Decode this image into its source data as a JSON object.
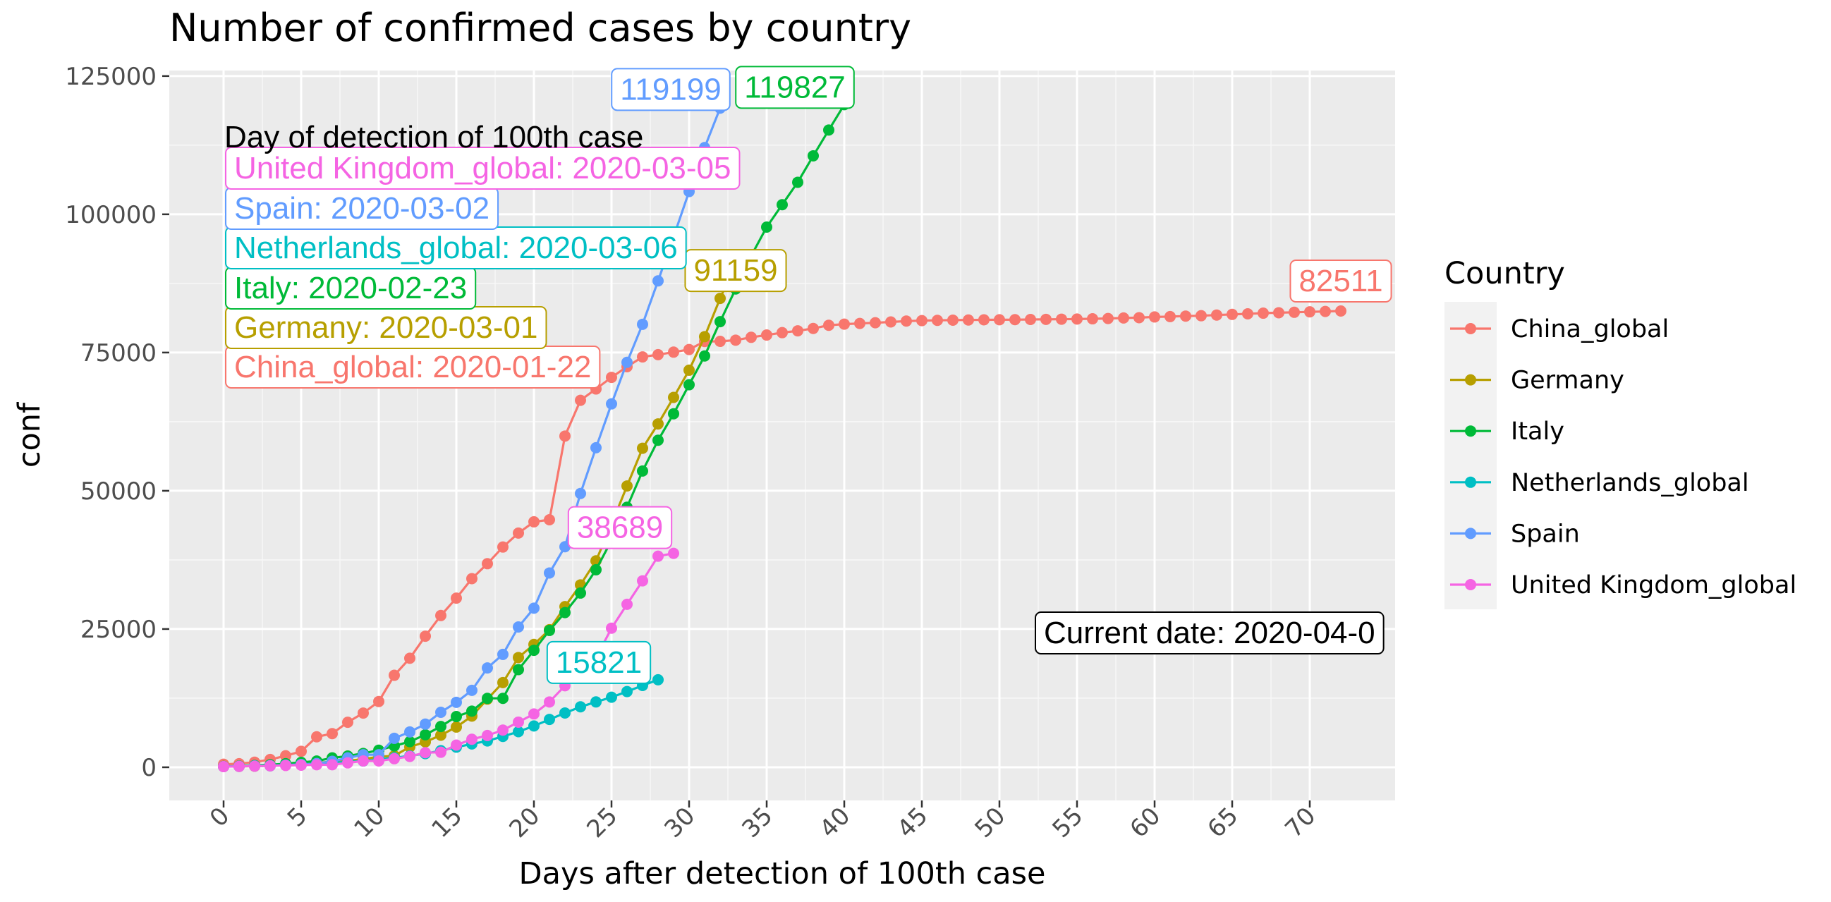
{
  "chart_data": {
    "type": "line",
    "title": "Number of confirmed cases by country",
    "xlabel": "Days after detection of 100th case",
    "ylabel": "conf",
    "xlim": [
      -3.5,
      75.5
    ],
    "ylim": [
      -6000,
      126000
    ],
    "x_ticks": [
      0,
      5,
      10,
      15,
      20,
      25,
      30,
      35,
      40,
      45,
      50,
      55,
      60,
      65,
      70
    ],
    "y_ticks": [
      0,
      25000,
      50000,
      75000,
      100000,
      125000
    ],
    "y_tick_labels": [
      "0",
      "25000",
      "50000",
      "75000",
      "100000",
      "125000"
    ],
    "grid": true,
    "legend": {
      "title": "Country",
      "position": "right"
    },
    "annotation_title": "Day of detection of 100th case",
    "current_date_label": "Current date: 2020-04-0",
    "series": [
      {
        "name": "China_global",
        "color": "#F8766D",
        "x": [
          0,
          1,
          2,
          3,
          4,
          5,
          6,
          7,
          8,
          9,
          10,
          11,
          12,
          13,
          14,
          15,
          16,
          17,
          18,
          19,
          20,
          21,
          22,
          23,
          24,
          25,
          26,
          27,
          28,
          29,
          30,
          31,
          32,
          33,
          34,
          35,
          36,
          37,
          38,
          39,
          40,
          41,
          42,
          43,
          44,
          45,
          46,
          47,
          48,
          49,
          50,
          51,
          52,
          53,
          54,
          55,
          56,
          57,
          58,
          59,
          60,
          61,
          62,
          63,
          64,
          65,
          66,
          67,
          68,
          69,
          70,
          71,
          72
        ],
        "values": [
          548,
          643,
          920,
          1406,
          2075,
          2877,
          5509,
          6087,
          8141,
          9802,
          11891,
          16630,
          19716,
          23707,
          27440,
          30587,
          34110,
          36814,
          39829,
          42354,
          44386,
          44759,
          59895,
          66358,
          68413,
          70513,
          72434,
          74211,
          74619,
          75077,
          75550,
          77001,
          77022,
          77241,
          77754,
          78166,
          78600,
          78928,
          79356,
          79932,
          80136,
          80261,
          80386,
          80537,
          80690,
          80770,
          80823,
          80860,
          80887,
          80921,
          80932,
          80945,
          80977,
          81003,
          81033,
          81058,
          81102,
          81156,
          81250,
          81305,
          81435,
          81498,
          81591,
          81661,
          81782,
          81897,
          81999,
          82122,
          82198,
          82279,
          82361,
          82432,
          82511
        ],
        "end_label": "82511",
        "detection_label": "China_global: 2020-01-22"
      },
      {
        "name": "Germany",
        "color": "#B79F00",
        "x": [
          0,
          1,
          2,
          3,
          4,
          5,
          6,
          7,
          8,
          9,
          10,
          11,
          12,
          13,
          14,
          15,
          16,
          17,
          18,
          19,
          20,
          21,
          22,
          23,
          24,
          25,
          26,
          27,
          28,
          29,
          30,
          31,
          32,
          33
        ],
        "values": [
          130,
          159,
          196,
          262,
          482,
          670,
          799,
          1040,
          1176,
          1457,
          1908,
          2078,
          3675,
          4585,
          5795,
          7272,
          9257,
          12327,
          15320,
          19848,
          22213,
          24873,
          29056,
          32986,
          37323,
          43938,
          50871,
          57695,
          62095,
          66885,
          71808,
          77872,
          84794,
          91159
        ],
        "end_label": "91159",
        "detection_label": "Germany: 2020-03-01"
      },
      {
        "name": "Italy",
        "color": "#00BA38",
        "x": [
          0,
          1,
          2,
          3,
          4,
          5,
          6,
          7,
          8,
          9,
          10,
          11,
          12,
          13,
          14,
          15,
          16,
          17,
          18,
          19,
          20,
          21,
          22,
          23,
          24,
          25,
          26,
          27,
          28,
          29,
          30,
          31,
          32,
          33,
          34,
          35,
          36,
          37,
          38,
          39,
          40
        ],
        "values": [
          155,
          229,
          322,
          453,
          655,
          888,
          1128,
          1694,
          2036,
          2502,
          3089,
          3858,
          4636,
          5883,
          7375,
          9172,
          10149,
          12462,
          12462,
          17660,
          21157,
          24747,
          27980,
          31506,
          35713,
          41035,
          47021,
          53578,
          59138,
          63927,
          69176,
          74386,
          80589,
          86498,
          92472,
          97689,
          101739,
          105792,
          110574,
          115242,
          119827
        ],
        "end_label": "119827",
        "detection_label": "Italy: 2020-02-23"
      },
      {
        "name": "Netherlands_global",
        "color": "#00BFC4",
        "x": [
          0,
          1,
          2,
          3,
          4,
          5,
          6,
          7,
          8,
          9,
          10,
          11,
          12,
          13,
          14,
          15,
          16,
          17,
          18,
          19,
          20,
          21,
          22,
          23,
          24,
          25,
          26,
          27,
          28
        ],
        "values": [
          128,
          188,
          265,
          321,
          382,
          503,
          503,
          806,
          962,
          1138,
          1416,
          1711,
          2058,
          2467,
          3003,
          3640,
          4217,
          4764,
          5580,
          6438,
          7468,
          8647,
          9819,
          10930,
          11817,
          12667,
          13696,
          14788,
          15821
        ],
        "end_label": "15821",
        "detection_label": "Netherlands_global: 2020-03-06"
      },
      {
        "name": "Spain",
        "color": "#619CFF",
        "x": [
          0,
          1,
          2,
          3,
          4,
          5,
          6,
          7,
          8,
          9,
          10,
          11,
          12,
          13,
          14,
          15,
          16,
          17,
          18,
          19,
          20,
          21,
          22,
          23,
          24,
          25,
          26,
          27,
          28,
          29,
          30,
          31,
          32
        ],
        "values": [
          120,
          165,
          222,
          259,
          400,
          500,
          673,
          1073,
          1695,
          2277,
          2277,
          5232,
          6391,
          7798,
          9942,
          11748,
          13910,
          17963,
          20410,
          25374,
          28768,
          35136,
          39885,
          49515,
          57786,
          65719,
          73235,
          80110,
          87956,
          95923,
          104118,
          112065,
          119199
        ],
        "end_label": "119199",
        "detection_label": "Spain: 2020-03-02"
      },
      {
        "name": "United Kingdom_global",
        "color": "#F564E3",
        "x": [
          0,
          1,
          2,
          3,
          4,
          5,
          6,
          7,
          8,
          9,
          10,
          11,
          12,
          13,
          14,
          15,
          16,
          17,
          18,
          19,
          20,
          21,
          22,
          23,
          24,
          25,
          26,
          27,
          28,
          29
        ],
        "values": [
          115,
          164,
          207,
          274,
          322,
          384,
          459,
          459,
          802,
          1144,
          1145,
          1551,
          1960,
          2642,
          2716,
          4014,
          5067,
          5745,
          6726,
          8164,
          9640,
          11812,
          14745,
          17312,
          19780,
          25150,
          29474,
          33718,
          38168,
          38689
        ],
        "end_label": "38689",
        "detection_label": "United Kingdom_global: 2020-03-05"
      }
    ]
  }
}
